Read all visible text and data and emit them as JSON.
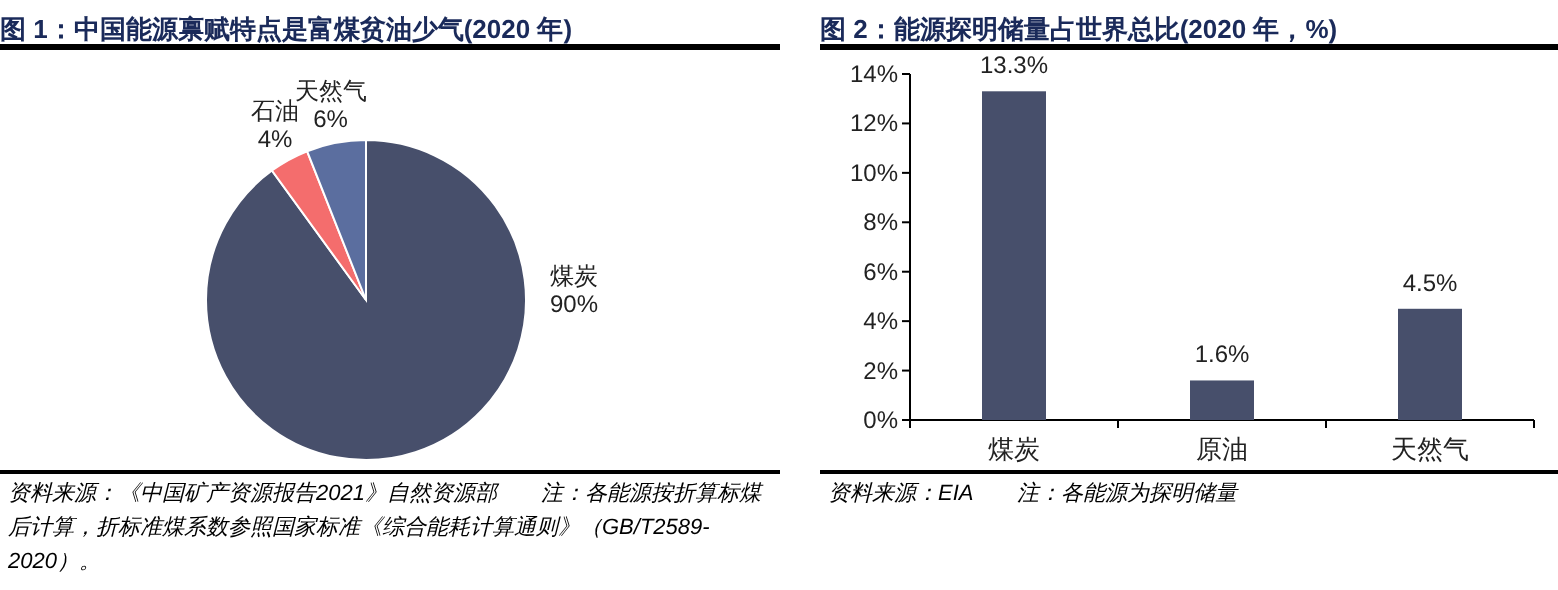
{
  "chart_data": [
    {
      "type": "pie",
      "title": "图 1：中国能源禀赋特点是富煤贫油少气(2020 年)",
      "categories": [
        "煤炭",
        "石油",
        "天然气"
      ],
      "values": [
        90,
        4,
        6
      ],
      "value_labels": [
        "90%",
        "4%",
        "6%"
      ],
      "colors": [
        "#474f6b",
        "#f46d6d",
        "#5b6e9f"
      ],
      "annotations": [
        "资料来源：《中国矿产资源报告2021》自然资源部　　注：各能源按折算标煤后计算，折标准煤系数参照国家标准《综合能耗计算通则》（GB/T2589-2020）。"
      ]
    },
    {
      "type": "bar",
      "title": "图 2：能源探明储量占世界总比(2020 年，%)",
      "categories": [
        "煤炭",
        "原油",
        "天然气"
      ],
      "values": [
        13.3,
        1.6,
        4.5
      ],
      "value_labels": [
        "13.3%",
        "1.6%",
        "4.5%"
      ],
      "color": "#474f6b",
      "ylim": [
        0,
        14
      ],
      "yticks": [
        {
          "value": 0,
          "label": "0%"
        },
        {
          "value": 2,
          "label": "2%"
        },
        {
          "value": 4,
          "label": "4%"
        },
        {
          "value": 6,
          "label": "6%"
        },
        {
          "value": 8,
          "label": "8%"
        },
        {
          "value": 10,
          "label": "10%"
        },
        {
          "value": 12,
          "label": "12%"
        },
        {
          "value": 14,
          "label": "14%"
        }
      ],
      "annotations": [
        "资料来源：EIA　　注：各能源为探明储量"
      ]
    }
  ]
}
